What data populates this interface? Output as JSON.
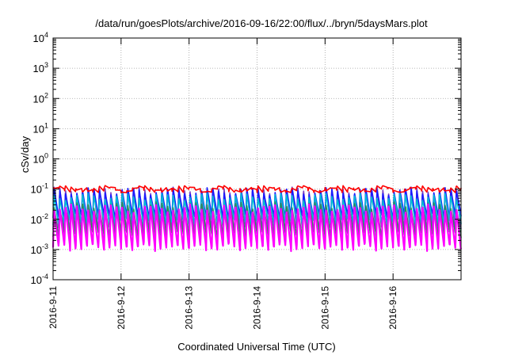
{
  "chart_data": {
    "type": "line",
    "title": "/data/run/goesPlots/archive/2016-09-16/22:00/flux/../bryn/5daysMars.plot",
    "xlabel": "Coordinated Universal Time (UTC)",
    "ylabel": "cSv/day",
    "x_tick_labels": [
      "2016-9-11",
      "2016-9-12",
      "2016-9-13",
      "2016-9-14",
      "2016-9-15",
      "2016-9-16"
    ],
    "xlim": [
      "2016-09-11 00:00",
      "2016-09-17 00:00"
    ],
    "yscale": "log",
    "ylim": [
      0.0001,
      10000
    ],
    "y_tick_labels": [
      {
        "base": "10",
        "exp": "-4"
      },
      {
        "base": "10",
        "exp": "-3"
      },
      {
        "base": "10",
        "exp": "-2"
      },
      {
        "base": "10",
        "exp": "-1"
      },
      {
        "base": "10",
        "exp": "0"
      },
      {
        "base": "10",
        "exp": "1"
      },
      {
        "base": "10",
        "exp": "2"
      },
      {
        "base": "10",
        "exp": "3"
      },
      {
        "base": "10",
        "exp": "4"
      }
    ],
    "grid": true,
    "legend": "none",
    "pattern": {
      "cycles_per_day": 12,
      "description": "periodic sawtooth flux, sharp rise then decay within each cycle"
    },
    "series": [
      {
        "color": "#ff0000",
        "peak": 0.105,
        "trough": 0.095
      },
      {
        "color": "#7a3fc4",
        "peak": 0.095,
        "trough": 0.004
      },
      {
        "color": "#1a1aff",
        "peak": 0.09,
        "trough": 0.012
      },
      {
        "color": "#00bcd4",
        "peak": 0.06,
        "trough": 0.008
      },
      {
        "color": "#2e8b57",
        "peak": 0.03,
        "trough": 0.003
      },
      {
        "color": "#ff00ff",
        "peak": 0.025,
        "trough": 0.0011
      }
    ]
  }
}
